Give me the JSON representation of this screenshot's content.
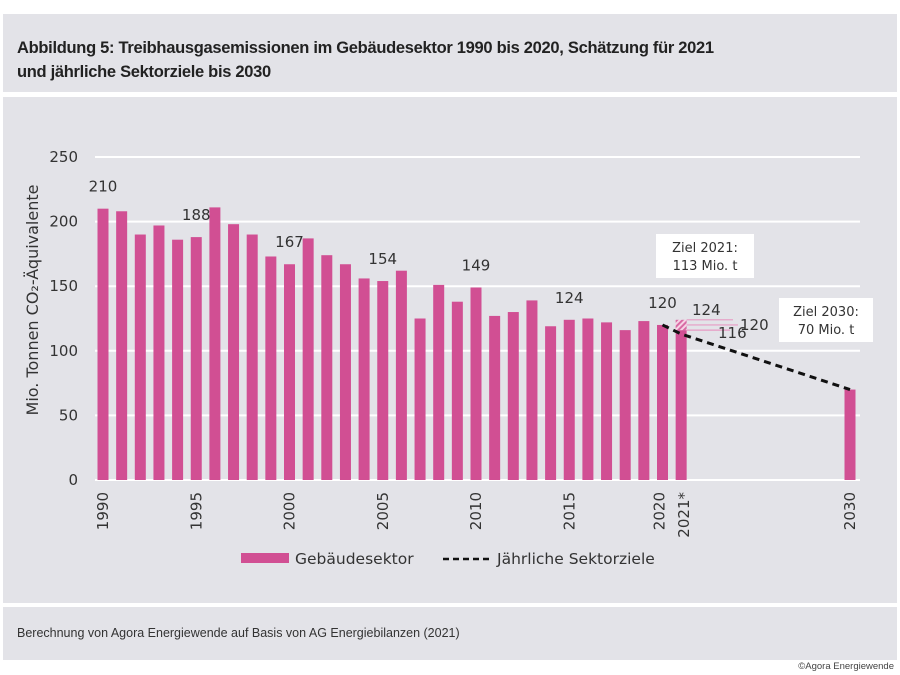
{
  "header": {
    "title_line1": "Abbildung 5: Treibhausgasemissionen im Gebäudesektor 1990 bis 2020, Schätzung für 2021",
    "title_line2": "und jährliche Sektorziele bis 2030"
  },
  "footer": {
    "source": "Berechnung von Agora Energiewende auf Basis von AG Energiebilanzen (2021)",
    "copyright": "©Agora Energiewende"
  },
  "colors": {
    "bar": "#d14f93",
    "bar_hatch": "#f0b8d5",
    "target_line": "#111111",
    "panel": "#e3e3e8",
    "grid": "#ffffff"
  },
  "chart_data": {
    "type": "bar",
    "title": "Treibhausgasemissionen im Gebäudesektor 1990 bis 2020, Schätzung für 2021 und jährliche Sektorziele bis 2030",
    "ylabel": "Mio. Tonnen CO₂-Äquivalente",
    "xlabel": "",
    "ylim": [
      0,
      250
    ],
    "yticks": [
      0,
      50,
      100,
      150,
      200,
      250
    ],
    "grid": true,
    "xticks": [
      "1990",
      "1995",
      "2000",
      "2005",
      "2010",
      "2015",
      "2020",
      "2021*",
      "2030"
    ],
    "series": [
      {
        "name": "Gebäudesektor",
        "kind": "bar",
        "x": [
          1990,
          1991,
          1992,
          1993,
          1994,
          1995,
          1996,
          1997,
          1998,
          1999,
          2000,
          2001,
          2002,
          2003,
          2004,
          2005,
          2006,
          2007,
          2008,
          2009,
          2010,
          2011,
          2012,
          2013,
          2014,
          2015,
          2016,
          2017,
          2018,
          2019,
          2020,
          2021,
          2030
        ],
        "values": [
          210,
          208,
          190,
          197,
          186,
          188,
          211,
          198,
          190,
          173,
          167,
          187,
          174,
          167,
          156,
          154,
          162,
          125,
          151,
          138,
          149,
          127,
          130,
          139,
          119,
          124,
          125,
          122,
          116,
          123,
          120,
          116,
          70
        ]
      },
      {
        "name": "Jährliche Sektorziele",
        "kind": "dashed-line",
        "x": [
          2020,
          2021,
          2030
        ],
        "values": [
          120,
          113,
          70
        ]
      }
    ],
    "estimate_2021": {
      "low": 116,
      "mid": 120,
      "high": 124
    },
    "data_labels": [
      {
        "x": 1990,
        "text": "210"
      },
      {
        "x": 1995,
        "text": "188"
      },
      {
        "x": 2000,
        "text": "167"
      },
      {
        "x": 2005,
        "text": "154"
      },
      {
        "x": 2010,
        "text": "149"
      },
      {
        "x": 2015,
        "text": "124"
      },
      {
        "x": 2020,
        "text": "120"
      }
    ],
    "estimate_labels": [
      "124",
      "120",
      "116"
    ],
    "annotations": [
      {
        "line1": "Ziel 2021:",
        "line2": "113 Mio. t"
      },
      {
        "line1": "Ziel 2030:",
        "line2": "70 Mio. t"
      }
    ],
    "legend": {
      "placement": "bottom",
      "items": [
        "Gebäudesektor",
        "Jährliche Sektorziele"
      ]
    }
  }
}
